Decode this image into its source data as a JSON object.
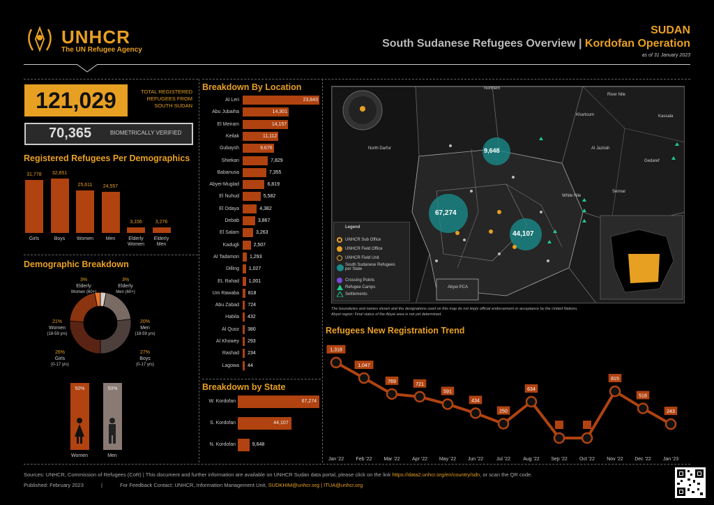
{
  "header": {
    "org": "UNHCR",
    "org_sub": "The UN Refugee Agency",
    "country": "SUDAN",
    "title_main": "South Sudanese Refugees Overview | ",
    "title_op": "Kordofan Operation",
    "date": "as of 31 January 2023"
  },
  "totals": {
    "registered": "121,029",
    "registered_label": "TOTAL REGISTERED REFUGEES FROM SOUTH SUDAN",
    "verified": "70,365",
    "verified_label": "BIOMETRICALLY VERIFIED"
  },
  "demographics": {
    "title": "Registered Refugees Per Demographics",
    "groups": [
      {
        "label": "Girls",
        "label2": "",
        "value": 31778,
        "display": "31,778"
      },
      {
        "label": "Boys",
        "label2": "",
        "value": 32651,
        "display": "32,651"
      },
      {
        "label": "Women",
        "label2": "",
        "value": 25611,
        "display": "25,611"
      },
      {
        "label": "Men",
        "label2": "",
        "value": 24557,
        "display": "24,557"
      },
      {
        "label": "Elderly",
        "label2": "Women",
        "value": 3156,
        "display": "3,156"
      },
      {
        "label": "Elderly",
        "label2": "Men",
        "value": 3276,
        "display": "3,276"
      }
    ]
  },
  "breakdown": {
    "title": "Demographic Breakdown",
    "slices": [
      {
        "pct": "3%",
        "name": "Elderly",
        "sub": "Women (60+)",
        "value": 3,
        "color": "#e8752a"
      },
      {
        "pct": "3%",
        "name": "Elderly",
        "sub": "Men (60+)",
        "value": 3,
        "color": "#d9cfc8"
      },
      {
        "pct": "20%",
        "name": "Men",
        "sub": "(18-59 yrs)",
        "value": 20,
        "color": "#7a6a64"
      },
      {
        "pct": "27%",
        "name": "Boys",
        "sub": "(0-17 yrs)",
        "value": 27,
        "color": "#4d403c"
      },
      {
        "pct": "26%",
        "name": "Girls",
        "sub": "(0-17 yrs)",
        "value": 26,
        "color": "#5a2414"
      },
      {
        "pct": "21%",
        "name": "Women",
        "sub": "(18-59 yrs)",
        "value": 21,
        "color": "#8a3510"
      }
    ],
    "gender": [
      {
        "label": "Women",
        "pct": "50%"
      },
      {
        "label": "Men",
        "pct": "50%"
      }
    ]
  },
  "locations": {
    "title": "Breakdown By Location",
    "items": [
      {
        "name": "Al Leri",
        "value": 23843,
        "display": "23,843"
      },
      {
        "name": "Abu Jubaiha",
        "value": 14301,
        "display": "14,301"
      },
      {
        "name": "El Meiram",
        "value": 14157,
        "display": "14,157"
      },
      {
        "name": "Keilak",
        "value": 11112,
        "display": "11,112"
      },
      {
        "name": "Gubaysh",
        "value": 9676,
        "display": "9,676"
      },
      {
        "name": "Shiekan",
        "value": 7829,
        "display": "7,829"
      },
      {
        "name": "Babanusa",
        "value": 7355,
        "display": "7,355"
      },
      {
        "name": "Abyei-Muglad",
        "value": 6819,
        "display": "6,819"
      },
      {
        "name": "El Nuhud",
        "value": 5582,
        "display": "5,582"
      },
      {
        "name": "El Odaya",
        "value": 4382,
        "display": "4,382"
      },
      {
        "name": "Debab",
        "value": 3867,
        "display": "3,867"
      },
      {
        "name": "El Salam",
        "value": 3263,
        "display": "3,263"
      },
      {
        "name": "Kadugli",
        "value": 2507,
        "display": "2,507"
      },
      {
        "name": "Al Tadamon",
        "value": 1293,
        "display": "1,293"
      },
      {
        "name": "Dilling",
        "value": 1027,
        "display": "1,027"
      },
      {
        "name": "EL Rahad",
        "value": 1001,
        "display": "1,001"
      },
      {
        "name": "Um Rawaba",
        "value": 818,
        "display": "818"
      },
      {
        "name": "Abu Zabad",
        "value": 724,
        "display": "724"
      },
      {
        "name": "Habila",
        "value": 432,
        "display": "432"
      },
      {
        "name": "Al Quoz",
        "value": 380,
        "display": "380"
      },
      {
        "name": "Al Khowey",
        "value": 293,
        "display": "293"
      },
      {
        "name": "Rashad",
        "value": 234,
        "display": "234"
      },
      {
        "name": "Lagowa",
        "value": 44,
        "display": "44"
      }
    ]
  },
  "states": {
    "title": "Breakdown by State",
    "items": [
      {
        "name": "W. Kordofan",
        "value": 67274,
        "display": "67,274"
      },
      {
        "name": "S. Kordofan",
        "value": 44107,
        "display": "44,107"
      },
      {
        "name": "N. Kordofan",
        "value": 9648,
        "display": "9,648"
      }
    ]
  },
  "map": {
    "region_top": "Northern",
    "labels": [
      "River Nile",
      "Khartoum",
      "Kassala",
      "North Darfur",
      "Al Jazirah",
      "Gedaref",
      "Sennar",
      "White Nile",
      "Abyei PCA"
    ],
    "bubbles": [
      {
        "label": "9,648",
        "color": "#1a8a8a"
      },
      {
        "label": "67,274",
        "color": "#1a8a8a"
      },
      {
        "label": "44,107",
        "color": "#1a8a8a"
      }
    ],
    "legend_title": "Legend",
    "legend": [
      "UNHCR Sub Office",
      "UNHCR Field Office",
      "UNHCR Field Unit",
      "South Sudanese Refugees per State",
      "Crossing Points",
      "Refugee Camps",
      "Settlements"
    ],
    "note1": "The boundaries and names shown and the designations used on this map do not imply official endorsement or acceptance by the United Nations.",
    "note2": "Abyei region: Final status of the Abyei area is not yet determined."
  },
  "chart_data": {
    "type": "line",
    "title": "Refugees New Registration Trend",
    "categories": [
      "Jan '22",
      "Feb '22",
      "Mar '22",
      "Apr '22",
      "May '22",
      "Jun '22",
      "Jul '22",
      "Aug '22",
      "Sep '22",
      "Oct '22",
      "Nov '22",
      "Dec '22",
      "Jan '23"
    ],
    "values": [
      1318,
      1047,
      769,
      721,
      591,
      434,
      250,
      634,
      null,
      null,
      815,
      518,
      243
    ],
    "labels": [
      "1,318",
      "1,047",
      "769",
      "721",
      "591",
      "434",
      "250",
      "634",
      "",
      "",
      "815",
      "518",
      "243"
    ],
    "ylim": [
      0,
      1400
    ],
    "color": "#b04310"
  },
  "footer": {
    "sources": "Sources: UNHCR, Commission of Refugees (CoR) | This document and further information are available on UNHCR Sudan data portal, please click on the link ",
    "link": "https://data2.unhcr.org/en/country/sdn",
    "sources_end": ", or scan the QR code.",
    "published": "Published: February 2023",
    "sep": "|",
    "feedback": "For Feedback Contact: UNHCR, Information Management Unit, ",
    "emails": "SUDKHIM@unhcr.org | ITUA@unhcr.org"
  }
}
